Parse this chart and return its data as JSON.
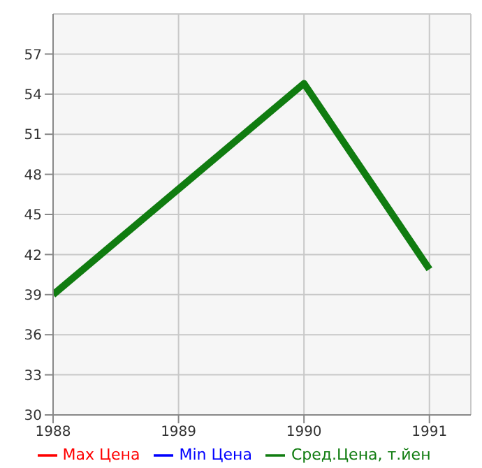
{
  "chart_data": {
    "type": "line",
    "x": [
      1988,
      1990,
      1991
    ],
    "series": [
      {
        "name": "Max Цена",
        "color": "#ff0000",
        "values": [
          null,
          null,
          null
        ]
      },
      {
        "name": "Min Цена",
        "color": "#0000ff",
        "values": [
          null,
          null,
          null
        ]
      },
      {
        "name": "Сред.Цена, т.йен",
        "color": "#107c10",
        "values": [
          39,
          54.8,
          40.9
        ]
      }
    ],
    "xlim": [
      1988,
      1991.33
    ],
    "xticks": [
      1988,
      1989,
      1990,
      1991
    ],
    "ylim": [
      30,
      60
    ],
    "yticks": [
      30,
      33,
      36,
      39,
      42,
      45,
      48,
      51,
      54,
      57
    ],
    "grid": true,
    "legend": "bottom",
    "marker": "none",
    "line_style": "solid"
  }
}
